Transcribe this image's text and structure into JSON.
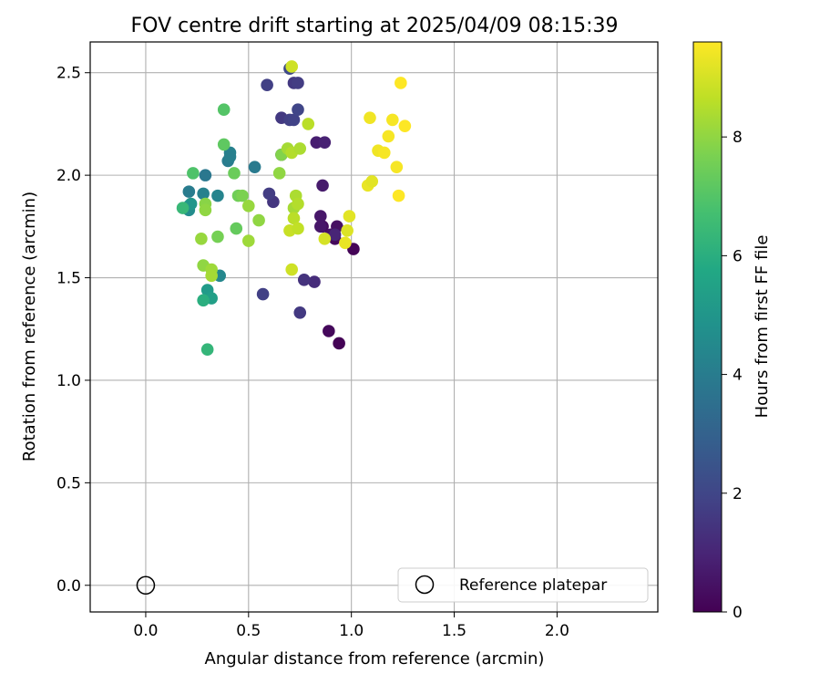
{
  "chart_data": {
    "type": "scatter",
    "title": "FOV centre drift starting at 2025/04/09 08:15:39",
    "xlabel": "Angular distance from reference (arcmin)",
    "ylabel": "Rotation from reference (arcmin)",
    "xlim": [
      -0.27,
      2.49
    ],
    "ylim": [
      -0.13,
      2.65
    ],
    "xticks": [
      0.0,
      0.5,
      1.0,
      1.5,
      2.0
    ],
    "xtick_labels": [
      "0.0",
      "0.5",
      "1.0",
      "1.5",
      "2.0"
    ],
    "yticks": [
      0.0,
      0.5,
      1.0,
      1.5,
      2.0,
      2.5
    ],
    "ytick_labels": [
      "0.0",
      "0.5",
      "1.0",
      "1.5",
      "2.0",
      "2.5"
    ],
    "grid": true,
    "colorbar": {
      "label": "Hours from first FF file",
      "colormap": "viridis",
      "range": [
        0,
        9.6
      ],
      "ticks": [
        0,
        2,
        4,
        6,
        8
      ],
      "tick_labels": [
        "0",
        "2",
        "4",
        "6",
        "8"
      ]
    },
    "legend": {
      "placement": "lower-right",
      "entries": [
        "Reference platepar"
      ]
    },
    "reference_point": {
      "x": 0.0,
      "y": 0.0
    },
    "points": [
      {
        "x": 0.94,
        "y": 1.18,
        "h": 0.05
      },
      {
        "x": 0.89,
        "y": 1.24,
        "h": 0.2
      },
      {
        "x": 1.01,
        "y": 1.64,
        "h": 0.1
      },
      {
        "x": 0.92,
        "y": 1.69,
        "h": 0.2
      },
      {
        "x": 0.86,
        "y": 1.75,
        "h": 0.3
      },
      {
        "x": 0.93,
        "y": 1.75,
        "h": 0.4
      },
      {
        "x": 0.9,
        "y": 1.71,
        "h": 0.5
      },
      {
        "x": 0.85,
        "y": 1.8,
        "h": 0.6
      },
      {
        "x": 0.86,
        "y": 1.95,
        "h": 0.7
      },
      {
        "x": 0.83,
        "y": 2.16,
        "h": 0.8
      },
      {
        "x": 0.87,
        "y": 2.16,
        "h": 0.9
      },
      {
        "x": 0.92,
        "y": 1.71,
        "h": 1.0
      },
      {
        "x": 0.85,
        "y": 1.75,
        "h": 0.6
      },
      {
        "x": 0.82,
        "y": 1.48,
        "h": 1.2
      },
      {
        "x": 0.77,
        "y": 1.49,
        "h": 1.4
      },
      {
        "x": 0.75,
        "y": 1.33,
        "h": 1.6
      },
      {
        "x": 0.57,
        "y": 1.42,
        "h": 1.8
      },
      {
        "x": 0.62,
        "y": 1.87,
        "h": 1.5
      },
      {
        "x": 0.6,
        "y": 1.91,
        "h": 1.7
      },
      {
        "x": 0.66,
        "y": 2.1,
        "h": 1.4
      },
      {
        "x": 0.66,
        "y": 2.28,
        "h": 1.6
      },
      {
        "x": 0.7,
        "y": 2.27,
        "h": 1.8
      },
      {
        "x": 0.72,
        "y": 2.27,
        "h": 1.9
      },
      {
        "x": 0.74,
        "y": 2.32,
        "h": 2.0
      },
      {
        "x": 0.59,
        "y": 2.44,
        "h": 1.8
      },
      {
        "x": 0.72,
        "y": 2.45,
        "h": 1.6
      },
      {
        "x": 0.74,
        "y": 2.45,
        "h": 1.7
      },
      {
        "x": 0.7,
        "y": 2.52,
        "h": 2.1
      },
      {
        "x": 0.29,
        "y": 2.0,
        "h": 3.8
      },
      {
        "x": 0.21,
        "y": 1.92,
        "h": 4.0
      },
      {
        "x": 0.28,
        "y": 1.91,
        "h": 4.2
      },
      {
        "x": 0.35,
        "y": 1.9,
        "h": 4.3
      },
      {
        "x": 0.21,
        "y": 1.85,
        "h": 4.5
      },
      {
        "x": 0.21,
        "y": 1.83,
        "h": 4.6
      },
      {
        "x": 0.41,
        "y": 2.11,
        "h": 4.2
      },
      {
        "x": 0.4,
        "y": 2.07,
        "h": 4.0
      },
      {
        "x": 0.41,
        "y": 2.09,
        "h": 4.1
      },
      {
        "x": 0.53,
        "y": 2.04,
        "h": 3.9
      },
      {
        "x": 0.36,
        "y": 1.51,
        "h": 4.4
      },
      {
        "x": 0.3,
        "y": 1.44,
        "h": 5.2
      },
      {
        "x": 0.32,
        "y": 1.4,
        "h": 5.4
      },
      {
        "x": 0.28,
        "y": 1.39,
        "h": 6.0
      },
      {
        "x": 0.3,
        "y": 1.15,
        "h": 6.3
      },
      {
        "x": 0.22,
        "y": 1.86,
        "h": 5.0
      },
      {
        "x": 0.18,
        "y": 1.84,
        "h": 6.4
      },
      {
        "x": 0.23,
        "y": 2.01,
        "h": 6.9
      },
      {
        "x": 0.38,
        "y": 2.32,
        "h": 7.0
      },
      {
        "x": 0.38,
        "y": 2.15,
        "h": 7.2
      },
      {
        "x": 0.43,
        "y": 2.01,
        "h": 7.4
      },
      {
        "x": 0.45,
        "y": 1.9,
        "h": 7.5
      },
      {
        "x": 0.47,
        "y": 1.9,
        "h": 7.7
      },
      {
        "x": 0.44,
        "y": 1.74,
        "h": 7.3
      },
      {
        "x": 0.35,
        "y": 1.7,
        "h": 7.6
      },
      {
        "x": 0.29,
        "y": 1.86,
        "h": 7.9
      },
      {
        "x": 0.29,
        "y": 1.83,
        "h": 8.0
      },
      {
        "x": 0.27,
        "y": 1.69,
        "h": 8.1
      },
      {
        "x": 0.28,
        "y": 1.56,
        "h": 8.0
      },
      {
        "x": 0.32,
        "y": 1.54,
        "h": 8.2
      },
      {
        "x": 0.32,
        "y": 1.51,
        "h": 8.3
      },
      {
        "x": 0.5,
        "y": 1.85,
        "h": 8.1
      },
      {
        "x": 0.5,
        "y": 1.68,
        "h": 8.2
      },
      {
        "x": 0.55,
        "y": 1.78,
        "h": 8.0
      },
      {
        "x": 0.65,
        "y": 2.01,
        "h": 8.0
      },
      {
        "x": 0.66,
        "y": 2.1,
        "h": 7.8
      },
      {
        "x": 0.69,
        "y": 2.13,
        "h": 8.3
      },
      {
        "x": 0.71,
        "y": 2.11,
        "h": 8.5
      },
      {
        "x": 0.75,
        "y": 2.13,
        "h": 8.4
      },
      {
        "x": 0.79,
        "y": 2.25,
        "h": 8.6
      },
      {
        "x": 0.73,
        "y": 1.9,
        "h": 8.4
      },
      {
        "x": 0.72,
        "y": 1.84,
        "h": 8.3
      },
      {
        "x": 0.74,
        "y": 1.86,
        "h": 8.5
      },
      {
        "x": 0.72,
        "y": 1.79,
        "h": 8.6
      },
      {
        "x": 0.7,
        "y": 1.73,
        "h": 8.8
      },
      {
        "x": 0.74,
        "y": 1.74,
        "h": 8.7
      },
      {
        "x": 0.71,
        "y": 1.54,
        "h": 8.9
      },
      {
        "x": 0.71,
        "y": 2.53,
        "h": 8.9
      },
      {
        "x": 0.87,
        "y": 1.69,
        "h": 9.0
      },
      {
        "x": 0.98,
        "y": 1.73,
        "h": 9.1
      },
      {
        "x": 0.99,
        "y": 1.8,
        "h": 9.2
      },
      {
        "x": 0.97,
        "y": 1.67,
        "h": 9.3
      },
      {
        "x": 1.08,
        "y": 1.95,
        "h": 9.3
      },
      {
        "x": 1.1,
        "y": 1.97,
        "h": 9.2
      },
      {
        "x": 1.09,
        "y": 2.28,
        "h": 9.4
      },
      {
        "x": 1.13,
        "y": 2.12,
        "h": 9.4
      },
      {
        "x": 1.16,
        "y": 2.11,
        "h": 9.5
      },
      {
        "x": 1.18,
        "y": 2.19,
        "h": 9.5
      },
      {
        "x": 1.2,
        "y": 2.27,
        "h": 9.5
      },
      {
        "x": 1.22,
        "y": 2.04,
        "h": 9.5
      },
      {
        "x": 1.23,
        "y": 1.9,
        "h": 9.6
      },
      {
        "x": 1.24,
        "y": 2.45,
        "h": 9.6
      },
      {
        "x": 1.26,
        "y": 2.24,
        "h": 9.6
      }
    ]
  }
}
